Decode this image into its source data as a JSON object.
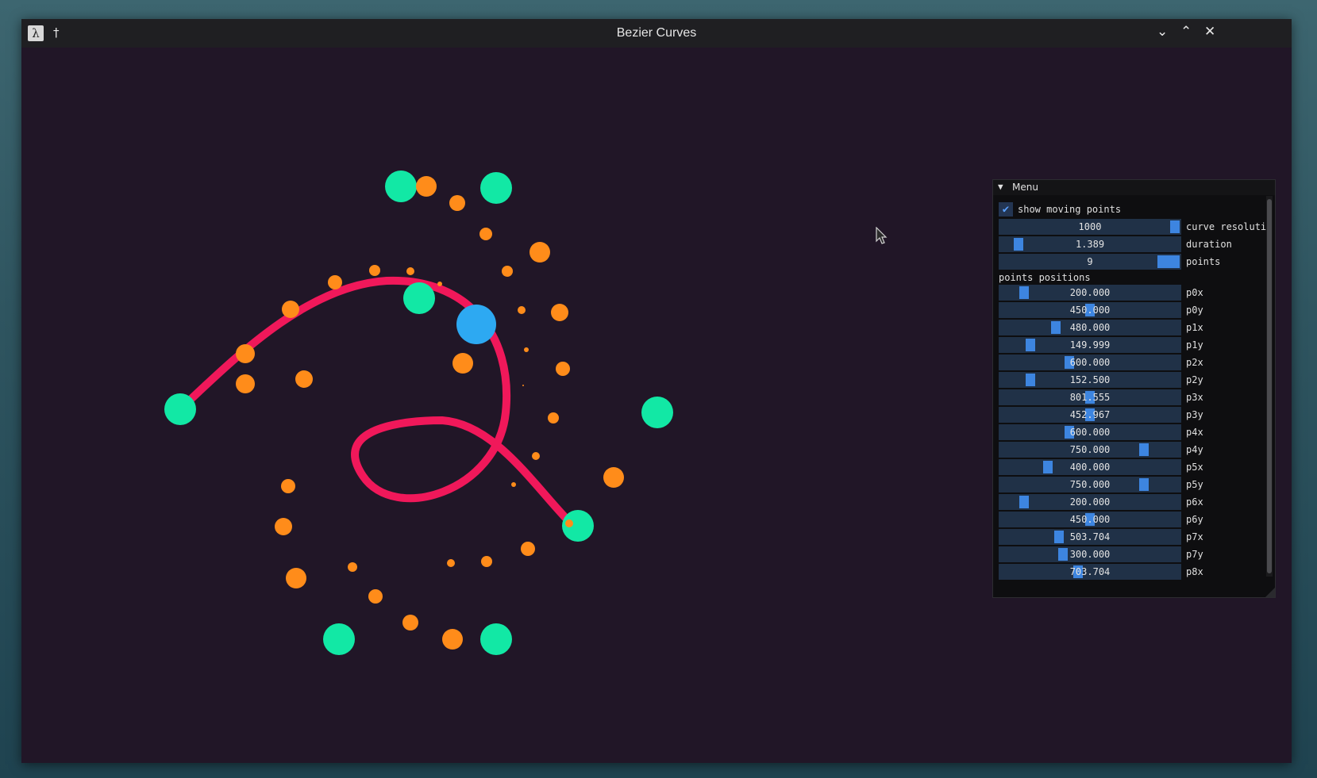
{
  "window": {
    "title": "Bezier Curves"
  },
  "colors": {
    "background": "#211627",
    "curve": "#f0185a",
    "control_point": "#12e8a5",
    "moving_point": "#ff8c1a",
    "current_point": "#2da9f2",
    "slider_track": "#203147",
    "slider_grab": "#3d85e0"
  },
  "icons": {
    "app": "app-icon",
    "pin": "pin-icon",
    "minimize": "chevron-down-icon",
    "maximize": "chevron-up-icon",
    "close": "close-icon",
    "collapse": "triangle-down-icon",
    "check": "checkmark-icon"
  },
  "glyphs": {
    "app": "λ",
    "pin": "†",
    "minimize": "⌄",
    "maximize": "⌃",
    "close": "✕",
    "collapse": "▼",
    "check": "✔"
  },
  "menu": {
    "title": "Menu",
    "show_moving_points": {
      "label": "show moving points",
      "checked": true
    },
    "settings": [
      {
        "value": "1000",
        "label": "curve resoluti",
        "fraction": 1.0
      },
      {
        "value": "1.389",
        "label": "duration",
        "fraction": 0.08
      },
      {
        "value": "9",
        "label": "points",
        "fraction": 1.0
      }
    ],
    "positions_label": "points positions",
    "positions": [
      {
        "value": "200.000",
        "label": "p0x",
        "fraction": 0.11
      },
      {
        "value": "450.000",
        "label": "p0y",
        "fraction": 0.5
      },
      {
        "value": "480.000",
        "label": "p1x",
        "fraction": 0.3
      },
      {
        "value": "149.999",
        "label": "p1y",
        "fraction": 0.15
      },
      {
        "value": "600.000",
        "label": "p2x",
        "fraction": 0.38
      },
      {
        "value": "152.500",
        "label": "p2y",
        "fraction": 0.15
      },
      {
        "value": "801.555",
        "label": "p3x",
        "fraction": 0.5
      },
      {
        "value": "452.967",
        "label": "p3y",
        "fraction": 0.5
      },
      {
        "value": "600.000",
        "label": "p4x",
        "fraction": 0.38
      },
      {
        "value": "750.000",
        "label": "p4y",
        "fraction": 0.82
      },
      {
        "value": "400.000",
        "label": "p5x",
        "fraction": 0.25
      },
      {
        "value": "750.000",
        "label": "p5y",
        "fraction": 0.82
      },
      {
        "value": "200.000",
        "label": "p6x",
        "fraction": 0.11
      },
      {
        "value": "450.000",
        "label": "p6y",
        "fraction": 0.5
      },
      {
        "value": "503.704",
        "label": "p7x",
        "fraction": 0.32
      },
      {
        "value": "300.000",
        "label": "p7y",
        "fraction": 0.34
      },
      {
        "value": "703.704",
        "label": "p8x",
        "fraction": 0.43
      }
    ]
  }
}
